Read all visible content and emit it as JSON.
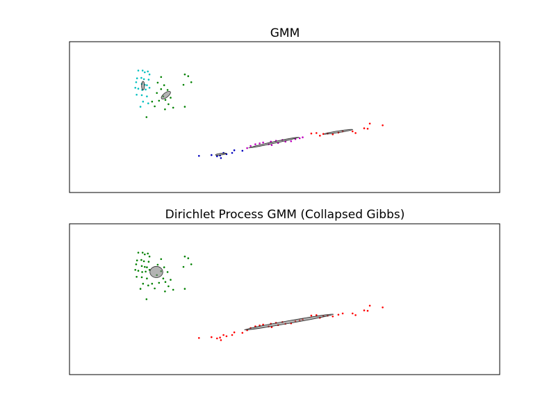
{
  "chart_data": [
    {
      "type": "scatter",
      "title": "GMM",
      "xlabel": "",
      "ylabel": "",
      "xlim": [
        0,
        100
      ],
      "ylim": [
        0,
        35
      ],
      "ticks": "hidden",
      "grid": false,
      "legend": "none",
      "clusters": [
        {
          "color": "#00bfbf",
          "points": [
            [
              16.0,
              28.3
            ],
            [
              17.0,
              28.3
            ],
            [
              17.5,
              27.9
            ],
            [
              18.2,
              28.1
            ],
            [
              18.6,
              27.4
            ],
            [
              15.7,
              26.5
            ],
            [
              16.7,
              26.6
            ],
            [
              17.3,
              26.3
            ],
            [
              18.4,
              26.2
            ],
            [
              15.5,
              25.6
            ],
            [
              16.8,
              25.2
            ],
            [
              17.5,
              25.0
            ],
            [
              18.0,
              24.9
            ],
            [
              15.3,
              24.3
            ],
            [
              16.0,
              24.1
            ],
            [
              16.9,
              23.8
            ],
            [
              17.7,
              23.9
            ],
            [
              18.6,
              24.3
            ],
            [
              15.6,
              22.7
            ],
            [
              16.8,
              22.6
            ],
            [
              18.0,
              22.3
            ],
            [
              17.1,
              21.1
            ],
            [
              18.3,
              20.7
            ],
            [
              16.5,
              19.9
            ]
          ]
        },
        {
          "color": "#008000",
          "points": [
            [
              21.3,
              26.8
            ],
            [
              26.8,
              27.4
            ],
            [
              27.6,
              27.0
            ],
            [
              28.3,
              25.6
            ],
            [
              26.5,
              25.0
            ],
            [
              20.5,
              25.5
            ],
            [
              22.0,
              24.9
            ],
            [
              21.3,
              24.0
            ],
            [
              22.8,
              23.8
            ],
            [
              20.3,
              23.1
            ],
            [
              21.8,
              22.3
            ],
            [
              23.5,
              22.0
            ],
            [
              22.3,
              21.5
            ],
            [
              20.8,
              21.3
            ],
            [
              23.0,
              20.5
            ],
            [
              19.2,
              21.1
            ],
            [
              19.8,
              20.0
            ],
            [
              26.8,
              19.9
            ],
            [
              22.2,
              19.3
            ],
            [
              24.1,
              19.7
            ],
            [
              17.9,
              17.5
            ]
          ]
        },
        {
          "color": "#0000bf",
          "points": [
            [
              30.1,
              8.5
            ],
            [
              33.0,
              8.7
            ],
            [
              35.0,
              8.6
            ],
            [
              35.8,
              9.2
            ],
            [
              36.5,
              8.9
            ],
            [
              34.3,
              8.4
            ],
            [
              35.2,
              8.0
            ],
            [
              37.8,
              9.2
            ],
            [
              38.3,
              9.8
            ],
            [
              40.2,
              9.7
            ]
          ]
        },
        {
          "color": "#bf00bf",
          "points": [
            [
              41.3,
              10.3
            ],
            [
              42.1,
              10.8
            ],
            [
              43.2,
              11.2
            ],
            [
              44.2,
              11.4
            ],
            [
              45.0,
              11.6
            ],
            [
              46.3,
              11.2
            ],
            [
              46.8,
              11.8
            ],
            [
              47.0,
              11.0
            ],
            [
              48.0,
              12.0
            ],
            [
              48.5,
              11.5
            ],
            [
              49.5,
              12.2
            ],
            [
              50.2,
              11.8
            ],
            [
              51.5,
              11.9
            ],
            [
              52.5,
              12.4
            ],
            [
              53.5,
              12.6
            ],
            [
              54.2,
              12.8
            ]
          ]
        },
        {
          "color": "#ff0000",
          "points": [
            [
              56.2,
              13.7
            ],
            [
              57.4,
              13.8
            ],
            [
              58.2,
              13.2
            ],
            [
              59.0,
              13.6
            ],
            [
              60.0,
              13.7
            ],
            [
              61.2,
              13.5
            ],
            [
              62.5,
              13.9
            ],
            [
              63.5,
              14.2
            ],
            [
              65.8,
              14.2
            ],
            [
              68.5,
              14.9
            ],
            [
              69.3,
              14.8
            ],
            [
              69.8,
              16.0
            ],
            [
              72.8,
              15.6
            ],
            [
              66.5,
              13.8
            ]
          ]
        }
      ],
      "ellipses": [
        {
          "cx": 17.1,
          "cy": 24.8,
          "rx": 0.35,
          "ry": 1.0,
          "angle": 0
        },
        {
          "cx": 22.4,
          "cy": 22.6,
          "rx": 1.3,
          "ry": 0.55,
          "angle": 38
        },
        {
          "cx": 35.2,
          "cy": 8.9,
          "rx": 1.3,
          "ry": 0.15,
          "angle": 8
        },
        {
          "cx": 47.5,
          "cy": 11.6,
          "rx": 6.0,
          "ry": 0.18,
          "angle": 12
        },
        {
          "cx": 62.5,
          "cy": 14.1,
          "rx": 3.4,
          "ry": 0.15,
          "angle": 9
        }
      ]
    },
    {
      "type": "scatter",
      "title": "Dirichlet Process GMM (Collapsed Gibbs)",
      "xlabel": "",
      "ylabel": "",
      "xlim": [
        0,
        100
      ],
      "ylim": [
        0,
        35
      ],
      "ticks": "hidden",
      "grid": false,
      "legend": "none",
      "clusters": [
        {
          "color": "#008000",
          "points": [
            [
              16.0,
              28.3
            ],
            [
              17.0,
              28.3
            ],
            [
              17.5,
              27.9
            ],
            [
              18.2,
              28.1
            ],
            [
              18.6,
              27.4
            ],
            [
              21.3,
              26.8
            ],
            [
              26.8,
              27.4
            ],
            [
              27.6,
              27.0
            ],
            [
              28.3,
              25.6
            ],
            [
              26.5,
              25.0
            ],
            [
              15.7,
              26.5
            ],
            [
              16.7,
              26.6
            ],
            [
              17.3,
              26.3
            ],
            [
              18.4,
              26.2
            ],
            [
              15.5,
              25.6
            ],
            [
              16.8,
              25.2
            ],
            [
              17.5,
              25.0
            ],
            [
              18.0,
              24.9
            ],
            [
              20.5,
              25.5
            ],
            [
              22.0,
              24.9
            ],
            [
              15.3,
              24.3
            ],
            [
              16.0,
              24.1
            ],
            [
              16.9,
              23.8
            ],
            [
              17.7,
              23.9
            ],
            [
              18.6,
              24.3
            ],
            [
              21.3,
              24.0
            ],
            [
              22.8,
              23.8
            ],
            [
              15.6,
              22.7
            ],
            [
              16.8,
              22.6
            ],
            [
              18.0,
              22.3
            ],
            [
              20.3,
              23.1
            ],
            [
              21.8,
              22.3
            ],
            [
              23.5,
              22.0
            ],
            [
              22.3,
              21.5
            ],
            [
              20.8,
              21.3
            ],
            [
              17.1,
              21.1
            ],
            [
              18.3,
              20.7
            ],
            [
              16.5,
              19.9
            ],
            [
              23.0,
              20.5
            ],
            [
              19.2,
              21.1
            ],
            [
              19.8,
              20.0
            ],
            [
              26.8,
              19.9
            ],
            [
              22.2,
              19.3
            ],
            [
              24.1,
              19.7
            ],
            [
              17.9,
              17.5
            ]
          ]
        },
        {
          "color": "#ff0000",
          "points": [
            [
              30.1,
              8.5
            ],
            [
              33.0,
              8.7
            ],
            [
              35.0,
              8.6
            ],
            [
              35.8,
              9.2
            ],
            [
              36.5,
              8.9
            ],
            [
              34.3,
              8.4
            ],
            [
              35.2,
              8.0
            ],
            [
              37.8,
              9.2
            ],
            [
              38.3,
              9.8
            ],
            [
              40.2,
              9.7
            ],
            [
              41.3,
              10.3
            ],
            [
              42.1,
              10.8
            ],
            [
              43.2,
              11.2
            ],
            [
              44.2,
              11.4
            ],
            [
              45.0,
              11.6
            ],
            [
              46.3,
              11.2
            ],
            [
              46.8,
              11.8
            ],
            [
              47.0,
              11.0
            ],
            [
              48.0,
              12.0
            ],
            [
              48.5,
              11.5
            ],
            [
              49.5,
              12.2
            ],
            [
              50.2,
              11.8
            ],
            [
              51.5,
              11.9
            ],
            [
              52.5,
              12.4
            ],
            [
              53.5,
              12.6
            ],
            [
              54.2,
              12.8
            ],
            [
              56.2,
              13.7
            ],
            [
              57.4,
              13.8
            ],
            [
              58.2,
              13.2
            ],
            [
              59.0,
              13.6
            ],
            [
              60.0,
              13.7
            ],
            [
              61.2,
              13.5
            ],
            [
              62.5,
              13.9
            ],
            [
              63.5,
              14.2
            ],
            [
              65.8,
              14.2
            ],
            [
              68.5,
              14.9
            ],
            [
              69.3,
              14.8
            ],
            [
              69.8,
              16.0
            ],
            [
              72.8,
              15.6
            ],
            [
              66.5,
              13.8
            ]
          ]
        }
      ],
      "ellipses": [
        {
          "cx": 20.2,
          "cy": 23.8,
          "rx": 1.5,
          "ry": 1.3,
          "angle": 0
        },
        {
          "cx": 51.0,
          "cy": 12.2,
          "rx": 10.5,
          "ry": 0.3,
          "angle": 10
        }
      ]
    }
  ],
  "style": {
    "ellipse_fill": "#808080",
    "ellipse_stroke": "#000000",
    "ellipse_opacity": 0.6,
    "axes_color": "#000000"
  }
}
